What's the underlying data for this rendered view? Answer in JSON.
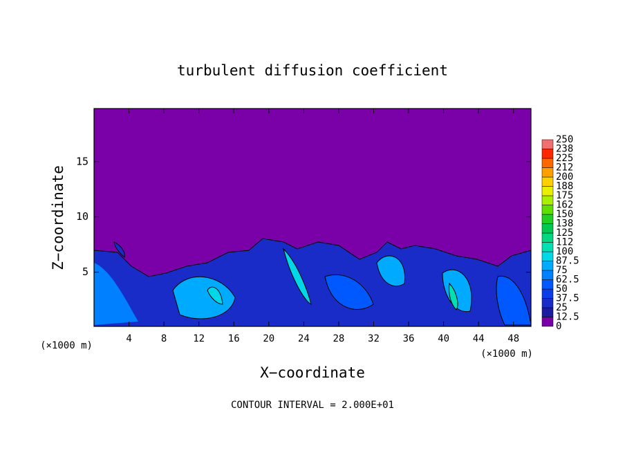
{
  "chart_data": {
    "type": "contour",
    "title": "turbulent diffusion coefficient",
    "xlabel": "X−coordinate",
    "ylabel": "Z−coordinate",
    "x_unit": "(×1000 m)",
    "footnote": "CONTOUR INTERVAL = 2.000E+01",
    "xlim": [
      0,
      50
    ],
    "xticks": [
      4,
      8,
      12,
      16,
      20,
      24,
      28,
      32,
      36,
      40,
      44,
      48
    ],
    "ylim": [
      0.1,
      19.8
    ],
    "yticks": [
      5,
      10,
      15
    ],
    "colorbar": {
      "ticks": [
        0,
        12.5,
        25,
        37.5,
        50,
        62.5,
        75,
        87.5,
        100,
        112,
        125,
        138,
        150,
        162,
        175,
        188,
        200,
        212,
        225,
        238,
        250
      ],
      "colors": [
        "#7a00a8",
        "#1c1ca0",
        "#1a2cc8",
        "#0a3ee8",
        "#0058ff",
        "#0080ff",
        "#00aaff",
        "#00d8e8",
        "#00e0b0",
        "#00d880",
        "#00c850",
        "#20d020",
        "#60e000",
        "#a8f000",
        "#e8f000",
        "#ffd000",
        "#ffa000",
        "#ff6800",
        "#ff2800",
        "#f07070"
      ]
    }
  }
}
